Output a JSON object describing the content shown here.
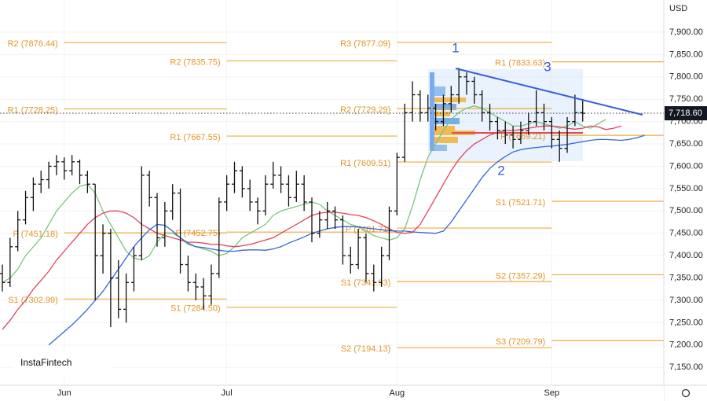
{
  "chart_data": {
    "type": "ohlc",
    "currency": "USD",
    "watermark": "InstaFintech",
    "annotations": [
      "1",
      "2",
      "3"
    ],
    "categories": [
      null,
      null,
      null,
      null,
      null,
      null,
      null,
      null,
      "Jun",
      null,
      null,
      null,
      null,
      null,
      null,
      null,
      null,
      null,
      null,
      null,
      null,
      null,
      null,
      null,
      null,
      null,
      null,
      null,
      null,
      "Jul",
      null,
      null,
      null,
      null,
      null,
      null,
      null,
      null,
      null,
      null,
      null,
      null,
      null,
      null,
      null,
      null,
      null,
      null,
      null,
      null,
      null,
      "Aug",
      null,
      null,
      null,
      null,
      null,
      null,
      null,
      null,
      null,
      null,
      null,
      null,
      null,
      null,
      null,
      null,
      null,
      null,
      null,
      "Sep",
      null,
      null,
      null,
      null,
      null,
      null,
      null,
      null,
      null,
      null,
      null,
      null
    ],
    "open": [
      7360,
      7340,
      7420,
      7480,
      7530,
      7560,
      7570,
      7600,
      7610,
      7590,
      7610,
      7580,
      7560,
      7400,
      7450,
      7350,
      7280,
      7340,
      7400,
      7580,
      7530,
      7440,
      7500,
      7540,
      7380,
      7340,
      7330,
      7310,
      7360,
      7520,
      7560,
      7590,
      7550,
      7520,
      7500,
      7560,
      7580,
      7560,
      7530,
      7560,
      7520,
      7450,
      7480,
      7500,
      7480,
      7400,
      7380,
      7440,
      7360,
      7340,
      7400,
      7500,
      7620,
      7720,
      7760,
      7720,
      7730,
      7700,
      7740,
      7760,
      7800,
      7790,
      7760,
      7720,
      7700,
      7680,
      7670,
      7660,
      7680,
      7700,
      7720,
      7700,
      7660,
      7640,
      7700,
      7720,
      null,
      null,
      null,
      null,
      null,
      null,
      null,
      null
    ],
    "high": [
      7380,
      7440,
      7500,
      7545,
      7575,
      7590,
      7610,
      7625,
      7620,
      7625,
      7615,
      7590,
      7560,
      7470,
      7460,
      7390,
      7360,
      7420,
      7600,
      7590,
      7540,
      7520,
      7560,
      7550,
      7400,
      7360,
      7350,
      7380,
      7530,
      7580,
      7610,
      7600,
      7570,
      7530,
      7580,
      7610,
      7600,
      7580,
      7590,
      7580,
      7530,
      7500,
      7520,
      7510,
      7490,
      7420,
      7460,
      7450,
      7380,
      7420,
      7510,
      7630,
      7740,
      7790,
      7770,
      7760,
      7740,
      7760,
      7780,
      7820,
      7810,
      7800,
      7770,
      7740,
      7710,
      7700,
      7690,
      7700,
      7720,
      7770,
      7740,
      7710,
      7680,
      7710,
      7760,
      7750,
      null,
      null,
      null,
      null,
      null,
      null,
      null,
      null
    ],
    "low": [
      7320,
      7330,
      7410,
      7470,
      7500,
      7540,
      7550,
      7580,
      7570,
      7580,
      7560,
      7540,
      7300,
      7360,
      7240,
      7260,
      7250,
      7320,
      7390,
      7510,
      7420,
      7420,
      7480,
      7360,
      7320,
      7300,
      7280,
      7290,
      7350,
      7500,
      7540,
      7530,
      7500,
      7470,
      7490,
      7550,
      7540,
      7510,
      7520,
      7500,
      7430,
      7440,
      7460,
      7460,
      7380,
      7360,
      7370,
      7340,
      7320,
      7330,
      7390,
      7490,
      7610,
      7700,
      7700,
      7700,
      7680,
      7690,
      7720,
      7740,
      7760,
      7740,
      7700,
      7680,
      7660,
      7650,
      7640,
      7650,
      7670,
      7690,
      7680,
      7640,
      7610,
      7630,
      7690,
      7700,
      null,
      null,
      null,
      null,
      null,
      null,
      null,
      null
    ],
    "close": [
      7340,
      7420,
      7480,
      7530,
      7560,
      7570,
      7600,
      7610,
      7590,
      7610,
      7580,
      7560,
      7400,
      7450,
      7350,
      7280,
      7340,
      7400,
      7580,
      7530,
      7440,
      7500,
      7540,
      7380,
      7340,
      7330,
      7310,
      7360,
      7520,
      7560,
      7590,
      7550,
      7520,
      7500,
      7560,
      7580,
      7560,
      7530,
      7560,
      7520,
      7450,
      7480,
      7500,
      7480,
      7400,
      7380,
      7440,
      7360,
      7340,
      7400,
      7500,
      7620,
      7720,
      7760,
      7720,
      7730,
      7700,
      7740,
      7760,
      7800,
      7790,
      7760,
      7720,
      7700,
      7680,
      7670,
      7660,
      7680,
      7700,
      7720,
      7700,
      7660,
      7640,
      7700,
      7720,
      7718.6,
      null,
      null,
      null,
      null,
      null,
      null,
      null,
      null
    ],
    "series": [
      {
        "color": "#7cc47f",
        "values": [
          7340,
          7350,
          7370,
          7400,
          7420,
          7440,
          7470,
          7500,
          7520,
          7540,
          7555,
          7560,
          7540,
          7500,
          7470,
          7440,
          7410,
          7395,
          7390,
          7400,
          7430,
          7450,
          7450,
          7440,
          7425,
          7420,
          7415,
          7410,
          7400,
          7405,
          7420,
          7440,
          7450,
          7460,
          7470,
          7490,
          7500,
          7505,
          7510,
          7515,
          7520,
          7515,
          7500,
          7490,
          7480,
          7470,
          7465,
          7455,
          7445,
          7440,
          7435,
          7440,
          7460,
          7510,
          7570,
          7620,
          7650,
          7680,
          7705,
          7720,
          7730,
          7735,
          7730,
          7720,
          7710,
          7700,
          7690,
          7690,
          7695,
          7700,
          7695,
          7690,
          7685,
          7690,
          7700,
          7690,
          7685,
          7695,
          7705,
          null,
          null,
          null,
          null,
          null
        ]
      },
      {
        "color": "#e0435b",
        "values": [
          7235,
          7255,
          7280,
          7300,
          7325,
          7345,
          7365,
          7390,
          7410,
          7430,
          7450,
          7470,
          7485,
          7495,
          7500,
          7500,
          7495,
          7485,
          7470,
          7460,
          7450,
          7445,
          7440,
          7435,
          7430,
          7430,
          7428,
          7425,
          7425,
          7422,
          7420,
          7422,
          7425,
          7430,
          7435,
          7440,
          7450,
          7460,
          7470,
          7480,
          7490,
          7495,
          7497,
          7497,
          7495,
          7492,
          7490,
          7485,
          7478,
          7470,
          7460,
          7452,
          7450,
          7452,
          7470,
          7500,
          7530,
          7560,
          7590,
          7615,
          7635,
          7650,
          7660,
          7670,
          7675,
          7680,
          7680,
          7682,
          7685,
          7688,
          7690,
          7690,
          7688,
          7685,
          7683,
          7685,
          7690,
          7688,
          7682,
          7685,
          7690,
          null,
          null,
          null
        ]
      },
      {
        "color": "#3566d6",
        "values": [
          null,
          null,
          null,
          null,
          null,
          null,
          7200,
          7215,
          7230,
          7245,
          7262,
          7280,
          7300,
          7320,
          7345,
          7370,
          7395,
          7420,
          7440,
          7458,
          7470,
          7468,
          7455,
          7440,
          7428,
          7420,
          7418,
          7415,
          7412,
          7410,
          7410,
          7412,
          7413,
          7413,
          7412,
          7415,
          7420,
          7428,
          7435,
          7442,
          7450,
          7455,
          7460,
          7463,
          7465,
          7465,
          7464,
          7462,
          7460,
          7458,
          7456,
          7455,
          7455,
          7453,
          7452,
          7451,
          7450,
          7455,
          7475,
          7500,
          7525,
          7550,
          7575,
          7595,
          7610,
          7622,
          7632,
          7637,
          7640,
          7642,
          7644,
          7645,
          7647,
          7649,
          7652,
          7655,
          7658,
          7660,
          7660,
          7659,
          7658,
          7660,
          7664,
          7669
        ]
      }
    ],
    "pivot_levels": [
      [
        {
          "value": 7876.44,
          "label": "R2 (7876.44)"
        },
        {
          "value": 7728.25,
          "label": "R1 (7728.25)"
        },
        {
          "value": 7451.18,
          "label": "P (7451.18)"
        },
        {
          "value": 7302.99,
          "label": "S1 (7302.99)"
        }
      ],
      [
        {
          "value": 7835.75,
          "label": "R2 (7835.75)"
        },
        {
          "value": 7667.55,
          "label": "R1 (7667.55)"
        },
        {
          "value": 7452.75,
          "label": "P (7452.75)"
        },
        {
          "value": 7284.5,
          "label": "S1 (7284.50)"
        }
      ],
      [
        {
          "value": 7877.09,
          "label": "R3 (7877.09)"
        },
        {
          "value": 7729.29,
          "label": "R2 (7729.29)"
        },
        {
          "value": 7609.51,
          "label": "R1 (7609.51)"
        },
        {
          "value": 7461.71,
          "label": "P (7461.71)"
        },
        {
          "value": 7341.93,
          "label": "S1 (7341.93)"
        },
        {
          "value": 7194.13,
          "label": "S2 (7194.13)"
        }
      ],
      [
        {
          "value": 7833.63,
          "label": "R1 (7833.63)"
        },
        {
          "value": 7669.21,
          "label": "P (7669.21)"
        },
        {
          "value": 7521.71,
          "label": "S1 (7521.71)"
        },
        {
          "value": 7357.29,
          "label": "S2 (7357.29)"
        },
        {
          "value": 7209.79,
          "label": "S3 (7209.79)"
        }
      ]
    ],
    "last_price": {
      "value": 7718.6,
      "label": "7,718.60"
    },
    "ylim": [
      7110,
      7972
    ],
    "yticks": [
      {
        "value": 7150,
        "label": "7,150.00"
      },
      {
        "value": 7200,
        "label": "7,200.00"
      },
      {
        "value": 7250,
        "label": "7,250.00"
      },
      {
        "value": 7300,
        "label": "7,300.00"
      },
      {
        "value": 7350,
        "label": "7,350.00"
      },
      {
        "value": 7400,
        "label": "7,400.00"
      },
      {
        "value": 7450,
        "label": "7,450.00"
      },
      {
        "value": 7500,
        "label": "7,500.00"
      },
      {
        "value": 7550,
        "label": "7,550.00"
      },
      {
        "value": 7600,
        "label": "7,600.00"
      },
      {
        "value": 7650,
        "label": "7,650.00"
      },
      {
        "value": 7700,
        "label": "7,700.00"
      },
      {
        "value": 7750,
        "label": "7,750.00"
      },
      {
        "value": 7800,
        "label": "7,800.00"
      },
      {
        "value": 7850,
        "label": "7,850.00"
      },
      {
        "value": 7900,
        "label": "7,900.00"
      }
    ],
    "grid": true
  }
}
